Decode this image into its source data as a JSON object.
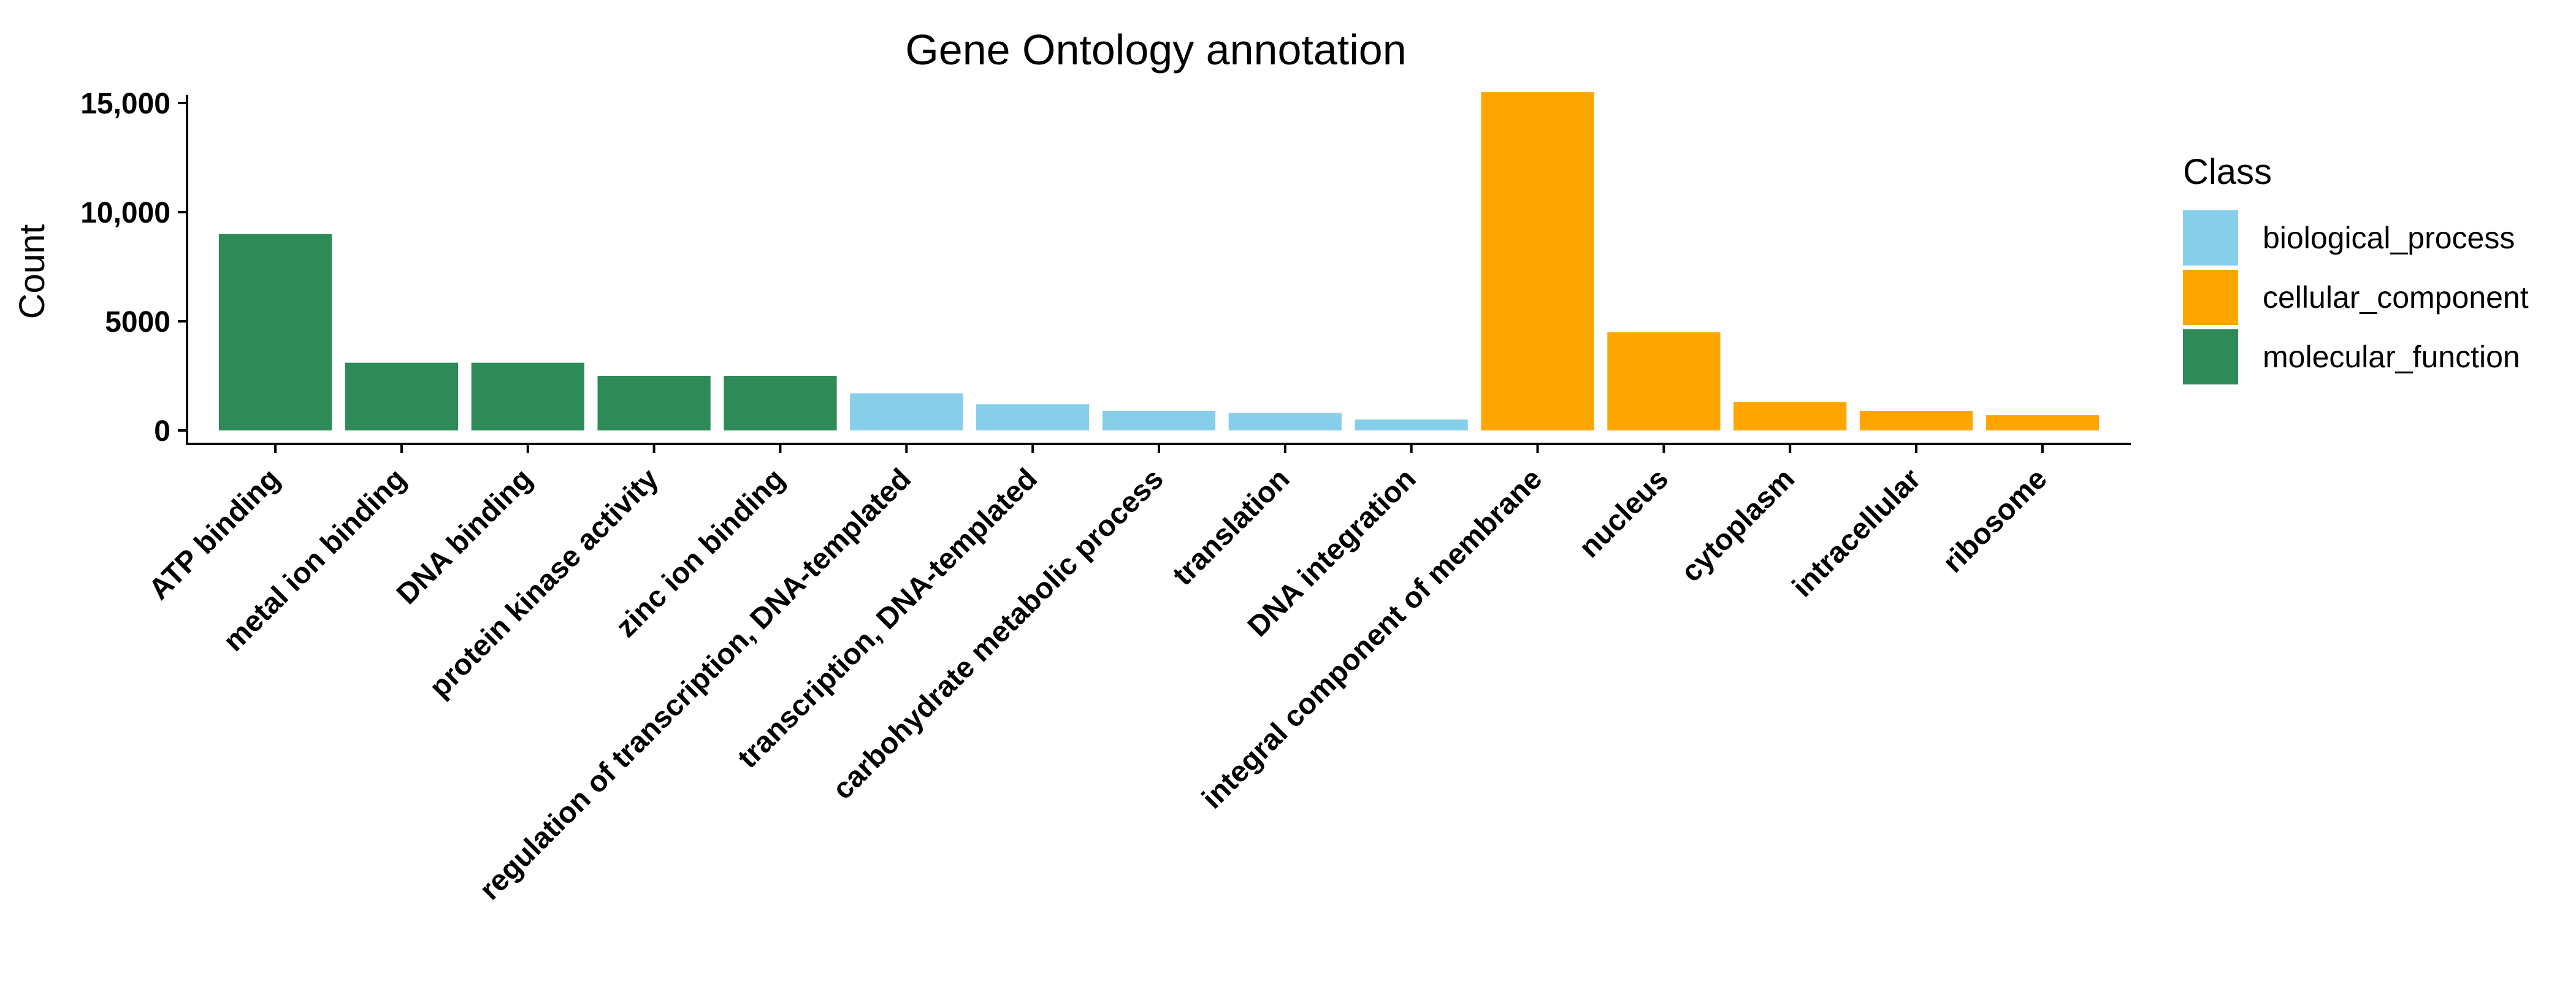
{
  "chart_data": {
    "type": "bar",
    "title": "Gene Ontology annotation",
    "xlabel": "",
    "ylabel": "Count",
    "ylim": [
      0,
      16000
    ],
    "yticks": [
      0,
      5000,
      10000,
      15000
    ],
    "ytick_labels": [
      "0",
      "5000",
      "10,000",
      "15,000"
    ],
    "grid": false,
    "legend_title": "Class",
    "legend_position": "right",
    "legend": [
      {
        "name": "biological_process",
        "color": "#87CEEB"
      },
      {
        "name": "cellular_component",
        "color": "#FFA500"
      },
      {
        "name": "molecular_function",
        "color": "#2E8B57"
      }
    ],
    "categories": [
      "ATP binding",
      "metal ion binding",
      "DNA binding",
      "protein kinase activity",
      "zinc ion binding",
      "regulation of transcription, DNA-templated",
      "transcription, DNA-templated",
      "carbohydrate metabolic process",
      "translation",
      "DNA integration",
      "integral component of membrane",
      "nucleus",
      "cytoplasm",
      "intracellular",
      "ribosome"
    ],
    "values": [
      9000,
      3100,
      3100,
      2500,
      2500,
      1700,
      1200,
      900,
      800,
      500,
      15500,
      4500,
      1300,
      900,
      700
    ],
    "classes": [
      "molecular_function",
      "molecular_function",
      "molecular_function",
      "molecular_function",
      "molecular_function",
      "biological_process",
      "biological_process",
      "biological_process",
      "biological_process",
      "biological_process",
      "cellular_component",
      "cellular_component",
      "cellular_component",
      "cellular_component",
      "cellular_component"
    ]
  }
}
